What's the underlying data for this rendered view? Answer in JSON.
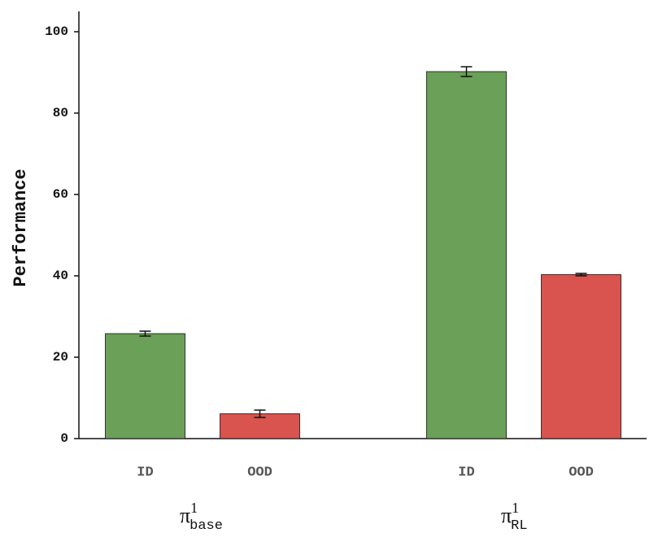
{
  "chart_data": {
    "type": "bar",
    "ylabel": "Performance",
    "categories": [
      {
        "symbol": "π",
        "superscript": "1",
        "subscript": "base"
      },
      {
        "symbol": "π",
        "superscript": "1",
        "subscript": "RL"
      }
    ],
    "series": [
      {
        "name": "ID",
        "color": "#6aa057",
        "values": [
          25.8,
          90.2
        ],
        "errors": [
          0.6,
          1.2
        ]
      },
      {
        "name": "OOD",
        "color": "#d9534f",
        "values": [
          6.1,
          40.3
        ],
        "errors": [
          0.9,
          0.3
        ]
      }
    ],
    "ylim": [
      0,
      105
    ],
    "yticks": [
      0,
      20,
      40,
      60,
      80,
      100
    ],
    "grid": false
  }
}
